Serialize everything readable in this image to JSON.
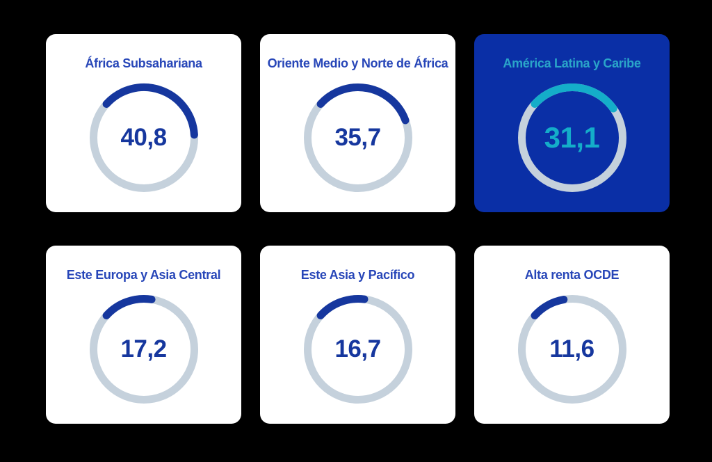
{
  "page": {
    "background": "#000000"
  },
  "colors": {
    "card_bg": "#ffffff",
    "card_bg_highlight": "#0a2fa6",
    "title_blue": "#2746b8",
    "value_blue": "#16379e",
    "arc_blue": "#16379e",
    "track": "#c5d1dc",
    "cyan": "#14adc9",
    "title_cyan": "#2aa5c9"
  },
  "cards": [
    {
      "title": "África Subsahariana",
      "value_label": "40,8",
      "value": 40.8,
      "highlighted": false
    },
    {
      "title": "Oriente Medio y Norte de África",
      "value_label": "35,7",
      "value": 35.7,
      "highlighted": false
    },
    {
      "title": "América Latina y Caribe",
      "value_label": "31,1",
      "value": 31.1,
      "highlighted": true
    },
    {
      "title": "Este Europa y Asia Central",
      "value_label": "17,2",
      "value": 17.2,
      "highlighted": false
    },
    {
      "title": "Este Asia y Pacífico",
      "value_label": "16,7",
      "value": 16.7,
      "highlighted": false
    },
    {
      "title": "Alta renta OCDE",
      "value_label": "11,6",
      "value": 11.6,
      "highlighted": false
    }
  ],
  "chart_data": {
    "type": "donut",
    "subtype": "gauge-multiples",
    "categories": [
      "África Subsahariana",
      "Oriente Medio y Norte de África",
      "América Latina y Caribe",
      "Este Europa y Asia Central",
      "Este Asia y Pacífico",
      "Alta renta OCDE"
    ],
    "values": [
      40.8,
      35.7,
      31.1,
      17.2,
      16.7,
      11.6
    ],
    "value_labels": [
      "40,8",
      "35,7",
      "31,1",
      "17,2",
      "16,7",
      "11,6"
    ],
    "highlighted_category": "América Latina y Caribe",
    "value_range": [
      0,
      100
    ],
    "decimal_separator": ",",
    "legend": "none",
    "grid": false
  }
}
